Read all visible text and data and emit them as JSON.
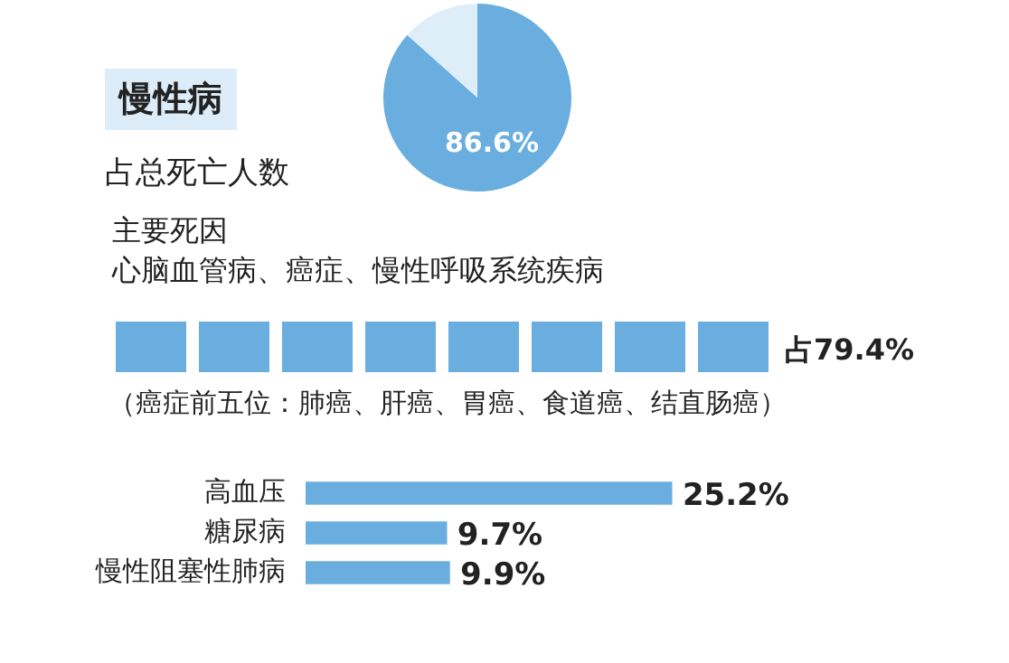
{
  "chart_data": [
    {
      "type": "pie",
      "title": "慢性病",
      "subtitle": "占总死亡人数",
      "categories": [
        null,
        null
      ],
      "values": [
        86.6,
        13.4
      ],
      "colors": [
        "#6aaee0",
        "#ddeef9"
      ],
      "value_labels": [
        "86.6%",
        null
      ]
    },
    {
      "type": "other",
      "title": "主要死因",
      "subtitle": "心脑血管病、癌症、慢性呼吸系统疾病",
      "annotations": [
        "占79.4%",
        "（癌症前五位：肺癌、肝癌、胃癌、食道癌、结直肠癌）"
      ]
    },
    {
      "type": "bar",
      "orientation": "horizontal",
      "categories": [
        "高血压",
        "糖尿病",
        "慢性阻塞性肺病"
      ],
      "values": [
        25.2,
        9.7,
        9.9
      ],
      "color": "#6aaee0",
      "value_labels": [
        "25.2%",
        "9.7%",
        "9.9%"
      ]
    }
  ]
}
